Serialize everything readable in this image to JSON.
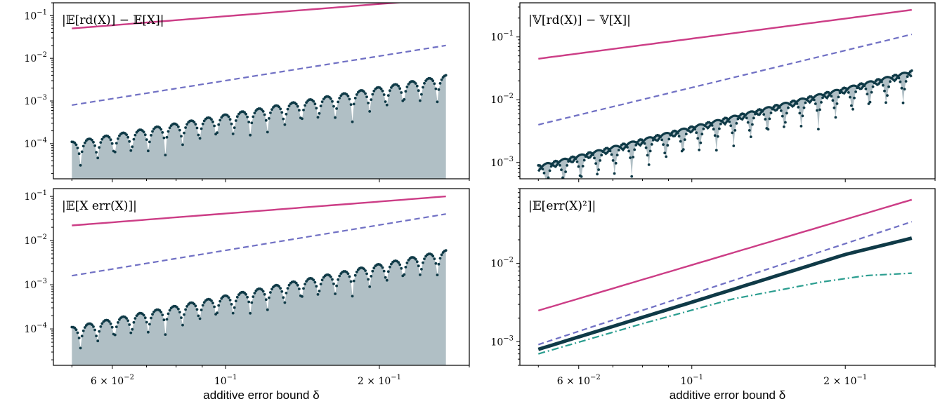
{
  "colors": {
    "upper_bound": "#cc3d86",
    "dashed_bound": "#7070c4",
    "dashdot_curve": "#2a9d8f",
    "observed": "#0f3a47",
    "fill": "#b0bfc5"
  },
  "chart_data": [
    {
      "type": "line",
      "title": "|𝔼[rd(X)] − 𝔼[X]|",
      "xscale": "log",
      "yscale": "log",
      "xlim": [
        0.046,
        0.3
      ],
      "ylim": [
        1.5e-05,
        0.2
      ],
      "yticks": [
        {
          "mant": "10",
          "exp": "−1",
          "v": 0.1
        },
        {
          "mant": "10",
          "exp": "−2",
          "v": 0.01
        },
        {
          "mant": "10",
          "exp": "−3",
          "v": 0.001
        },
        {
          "mant": "10",
          "exp": "−4",
          "v": 0.0001
        }
      ],
      "xticks": [],
      "xlabel": "",
      "series": [
        {
          "role": "solid",
          "x": [
            0.05,
            0.27
          ],
          "y": [
            0.05,
            0.25
          ]
        },
        {
          "role": "dashed",
          "x": [
            0.05,
            0.27
          ],
          "y": [
            0.0008,
            0.02
          ]
        },
        {
          "role": "observed",
          "x_range": [
            0.05,
            0.27
          ],
          "envelope_start": 0.00011,
          "envelope_end": 0.004,
          "dip_factor": 0.2,
          "arches": 22,
          "filled": true
        }
      ]
    },
    {
      "type": "line",
      "title": "|𝕍[rd(X)] − 𝕍[X]|",
      "xscale": "log",
      "yscale": "log",
      "xlim": [
        0.046,
        0.3
      ],
      "ylim": [
        0.00055,
        0.35
      ],
      "yticks": [
        {
          "mant": "10",
          "exp": "−1",
          "v": 0.1
        },
        {
          "mant": "10",
          "exp": "−2",
          "v": 0.01
        },
        {
          "mant": "10",
          "exp": "−3",
          "v": 0.001
        }
      ],
      "xticks": [],
      "xlabel": "",
      "series": [
        {
          "role": "solid",
          "x": [
            0.05,
            0.27
          ],
          "y": [
            0.045,
            0.27
          ]
        },
        {
          "role": "dashed",
          "x": [
            0.05,
            0.27
          ],
          "y": [
            0.004,
            0.11
          ]
        },
        {
          "role": "observed_upper",
          "x_range": [
            0.05,
            0.27
          ],
          "envelope_start": 0.0009,
          "envelope_end": 0.029,
          "arches": 22
        },
        {
          "role": "observed_lower",
          "x_range": [
            0.05,
            0.27
          ],
          "envelope_start": 0.0009,
          "envelope_end": 0.029,
          "dip_factor": 0.28,
          "arches": 22
        },
        {
          "role": "fill_between"
        }
      ]
    },
    {
      "type": "line",
      "title": "|𝔼[X err(X)]|",
      "xscale": "log",
      "yscale": "log",
      "xlim": [
        0.046,
        0.3
      ],
      "ylim": [
        1.5e-05,
        0.15
      ],
      "yticks": [
        {
          "mant": "10",
          "exp": "−1",
          "v": 0.1
        },
        {
          "mant": "10",
          "exp": "−2",
          "v": 0.01
        },
        {
          "mant": "10",
          "exp": "−3",
          "v": 0.001
        },
        {
          "mant": "10",
          "exp": "−4",
          "v": 0.0001
        }
      ],
      "xticks": [
        {
          "mant": "6 × 10",
          "exp": "−2",
          "v": 0.06
        },
        {
          "mant": "10",
          "exp": "−1",
          "v": 0.1
        },
        {
          "mant": "2 × 10",
          "exp": "−1",
          "v": 0.2
        }
      ],
      "xlabel": "additive error bound δ",
      "series": [
        {
          "role": "solid",
          "x": [
            0.05,
            0.27
          ],
          "y": [
            0.022,
            0.1
          ]
        },
        {
          "role": "dashed",
          "x": [
            0.05,
            0.27
          ],
          "y": [
            0.0016,
            0.04
          ]
        },
        {
          "role": "observed",
          "x_range": [
            0.05,
            0.27
          ],
          "envelope_start": 0.00011,
          "envelope_end": 0.006,
          "dip_factor": 0.25,
          "arches": 22,
          "filled": true
        }
      ]
    },
    {
      "type": "line",
      "title": "|𝔼[err(X)²]|",
      "xscale": "log",
      "yscale": "log",
      "xlim": [
        0.046,
        0.3
      ],
      "ylim": [
        0.0005,
        0.09
      ],
      "yticks": [
        {
          "mant": "10",
          "exp": "−2",
          "v": 0.01
        },
        {
          "mant": "10",
          "exp": "−3",
          "v": 0.001
        }
      ],
      "xticks": [
        {
          "mant": "6 × 10",
          "exp": "−2",
          "v": 0.06
        },
        {
          "mant": "10",
          "exp": "−1",
          "v": 0.1
        },
        {
          "mant": "2 × 10",
          "exp": "−1",
          "v": 0.2
        }
      ],
      "xlabel": "additive error bound δ",
      "series": [
        {
          "role": "solid",
          "x": [
            0.05,
            0.27
          ],
          "y": [
            0.0025,
            0.065
          ]
        },
        {
          "role": "dashed",
          "x": [
            0.05,
            0.27
          ],
          "y": [
            0.00092,
            0.034
          ]
        },
        {
          "role": "thick",
          "x": [
            0.05,
            0.1,
            0.2,
            0.27
          ],
          "y": [
            0.0008,
            0.0032,
            0.013,
            0.021
          ]
        },
        {
          "role": "dashdot",
          "x": [
            0.05,
            0.08,
            0.12,
            0.18,
            0.22,
            0.27
          ],
          "y": [
            0.0007,
            0.0017,
            0.0035,
            0.0058,
            0.007,
            0.0075
          ]
        }
      ]
    }
  ]
}
